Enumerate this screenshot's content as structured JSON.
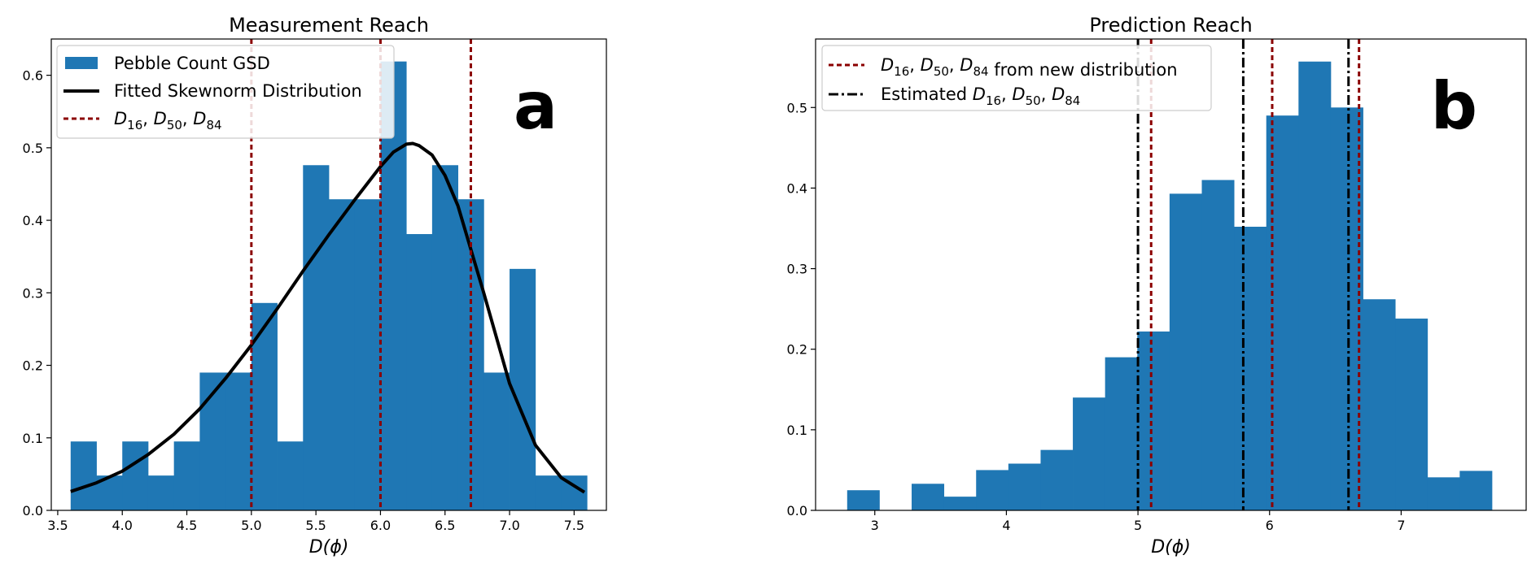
{
  "chart_data": [
    {
      "type": "bar",
      "title": "Measurement Reach",
      "xlabel": "D(ϕ)",
      "ylabel": "",
      "xlim": [
        3.45,
        7.75
      ],
      "ylim": [
        0,
        0.65
      ],
      "xticks": [
        3.5,
        4.0,
        4.5,
        5.0,
        5.5,
        6.0,
        6.5,
        7.0,
        7.5
      ],
      "xtick_labels": [
        "3.5",
        "4.0",
        "4.5",
        "5.0",
        "5.5",
        "6.0",
        "6.5",
        "7.0",
        "7.5"
      ],
      "yticks": [
        0.0,
        0.1,
        0.2,
        0.3,
        0.4,
        0.5,
        0.6
      ],
      "ytick_labels": [
        "0.0",
        "0.1",
        "0.2",
        "0.3",
        "0.4",
        "0.5",
        "0.6"
      ],
      "panel_label": "a",
      "legend_position": "upper-left",
      "histogram": {
        "name": "Pebble Count GSD",
        "color": "#1f77b4",
        "bin_edges": [
          3.6,
          3.8,
          4.0,
          4.2,
          4.4,
          4.6,
          4.8,
          5.0,
          5.2,
          5.4,
          5.6,
          5.8,
          6.0,
          6.2,
          6.4,
          6.6,
          6.8,
          7.0,
          7.2,
          7.4,
          7.6
        ],
        "values": [
          0.095,
          0.048,
          0.095,
          0.048,
          0.095,
          0.19,
          0.19,
          0.286,
          0.095,
          0.476,
          0.429,
          0.429,
          0.619,
          0.381,
          0.476,
          0.429,
          0.19,
          0.333,
          0.048,
          0.048
        ]
      },
      "fit_curve": {
        "name": "Fitted Skewnorm Distribution",
        "color": "#000000",
        "x": [
          3.6,
          3.8,
          4.0,
          4.2,
          4.4,
          4.6,
          4.8,
          5.0,
          5.2,
          5.4,
          5.6,
          5.8,
          6.0,
          6.1,
          6.2,
          6.25,
          6.3,
          6.4,
          6.5,
          6.6,
          6.8,
          7.0,
          7.2,
          7.4,
          7.58
        ],
        "y": [
          0.026,
          0.038,
          0.054,
          0.077,
          0.105,
          0.14,
          0.182,
          0.228,
          0.278,
          0.33,
          0.38,
          0.428,
          0.474,
          0.494,
          0.505,
          0.506,
          0.503,
          0.49,
          0.462,
          0.42,
          0.3,
          0.175,
          0.09,
          0.045,
          0.025
        ]
      },
      "vlines": {
        "label_main": "D",
        "subscripts": [
          "16",
          "50",
          "84"
        ],
        "style": "dashed",
        "color": "#8b0000",
        "x": [
          5.0,
          6.0,
          6.7
        ],
        "label_suffix": ""
      }
    },
    {
      "type": "bar",
      "title": "Prediction Reach",
      "xlabel": "D(ϕ)",
      "ylabel": "",
      "xlim": [
        2.55,
        7.95
      ],
      "ylim": [
        0,
        0.585
      ],
      "xticks": [
        3,
        4,
        5,
        6,
        7
      ],
      "xtick_labels": [
        "3",
        "4",
        "5",
        "6",
        "7"
      ],
      "yticks": [
        0.0,
        0.1,
        0.2,
        0.3,
        0.4,
        0.5
      ],
      "ytick_labels": [
        "0.0",
        "0.1",
        "0.2",
        "0.3",
        "0.4",
        "0.5"
      ],
      "panel_label": "b",
      "legend_position": "upper-left",
      "histogram": {
        "name": "",
        "color": "#1f77b4",
        "bin_edges": [
          2.79,
          3.035,
          3.28,
          3.525,
          3.77,
          4.015,
          4.26,
          4.505,
          4.75,
          4.995,
          5.24,
          5.485,
          5.73,
          5.975,
          6.22,
          6.465,
          6.71,
          6.955,
          7.2,
          7.445,
          7.69
        ],
        "values": [
          0.025,
          0.0,
          0.033,
          0.017,
          0.05,
          0.058,
          0.075,
          0.14,
          0.19,
          0.222,
          0.393,
          0.41,
          0.352,
          0.49,
          0.557,
          0.5,
          0.262,
          0.238,
          0.041,
          0.049
        ]
      },
      "vlines_new": {
        "label_main": "D",
        "subscripts": [
          "16",
          "50",
          "84"
        ],
        "label_suffix": "from new distribution",
        "style": "dashed",
        "color": "#8b0000",
        "x": [
          5.1,
          6.02,
          6.68
        ]
      },
      "vlines_est": {
        "label_prefix": "Estimated",
        "label_main": "D",
        "subscripts": [
          "16",
          "50",
          "84"
        ],
        "style": "dashdot",
        "color": "#000000",
        "x": [
          5.0,
          5.8,
          6.6
        ]
      }
    }
  ]
}
